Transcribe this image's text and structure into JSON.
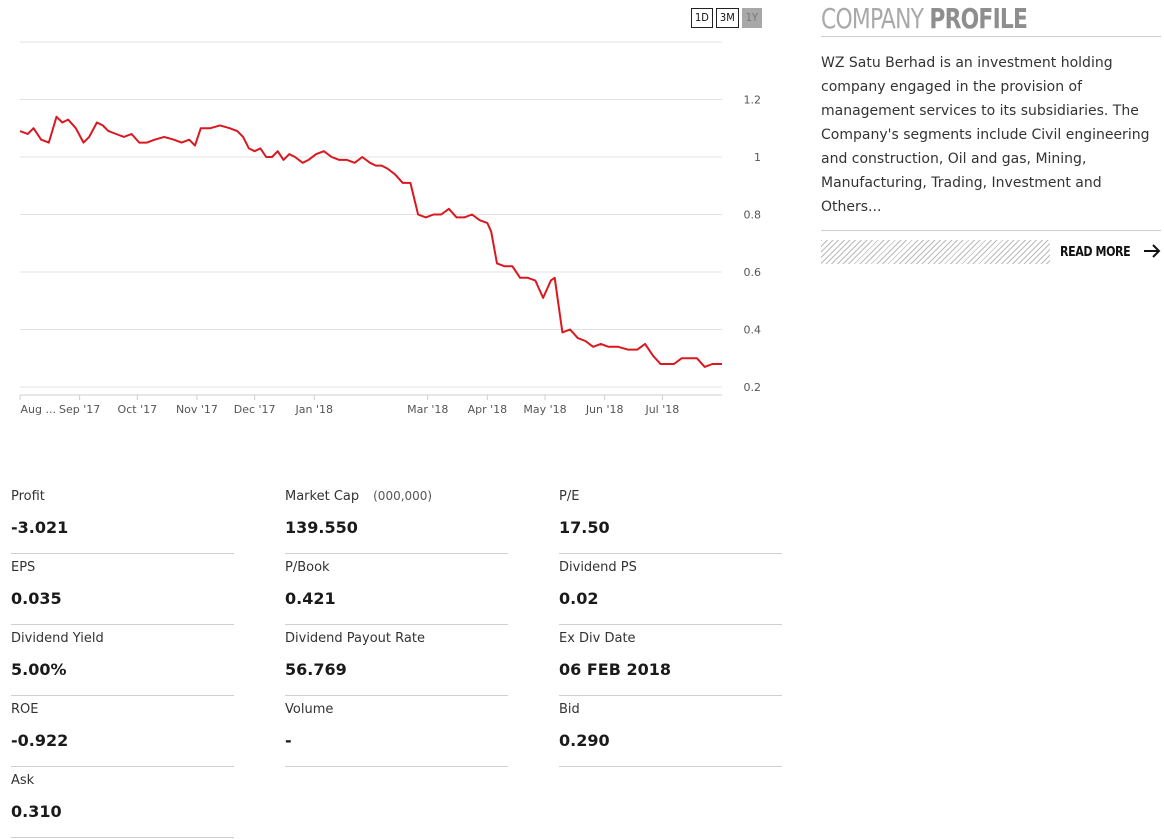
{
  "range_buttons": [
    {
      "label": "1D",
      "active": false
    },
    {
      "label": "3M",
      "active": false
    },
    {
      "label": "1Y",
      "active": true
    }
  ],
  "profile": {
    "title_light": "COMPANY",
    "title_bold": "PROFILE",
    "description": "WZ Satu Berhad is an investment holding company engaged in the provision of management services to its subsidiaries. The Company's segments include Civil engineering and construction, Oil and gas, Mining, Manufacturing, Trading, Investment and Others...",
    "read_more_label": "READ MORE",
    "arrow_icon": "arrow-right-icon"
  },
  "stats": {
    "profit": {
      "label": "Profit",
      "value": "-3.021"
    },
    "market_cap": {
      "label": "Market Cap",
      "unit": "(000,000)",
      "value": "139.550"
    },
    "pe": {
      "label": "P/E",
      "value": "17.50"
    },
    "eps": {
      "label": "EPS",
      "value": "0.035"
    },
    "p_book": {
      "label": "P/Book",
      "value": "0.421"
    },
    "dividend_ps": {
      "label": "Dividend PS",
      "value": "0.02"
    },
    "dividend_yield": {
      "label": "Dividend Yield",
      "value": "5.00%"
    },
    "dividend_payout": {
      "label": "Dividend Payout Rate",
      "value": "56.769"
    },
    "ex_div_date": {
      "label": "Ex Div Date",
      "value": "06 FEB 2018"
    },
    "roe": {
      "label": "ROE",
      "value": "-0.922"
    },
    "volume": {
      "label": "Volume",
      "value": "-"
    },
    "bid": {
      "label": "Bid",
      "value": "0.290"
    },
    "ask": {
      "label": "Ask",
      "value": "0.310"
    }
  },
  "colors": {
    "line": "#d9181f",
    "accent_gray": "#a8a8a8"
  },
  "chart_data": {
    "type": "line",
    "title": "",
    "xlabel": "",
    "ylabel": "",
    "ylim": [
      0.2,
      1.4
    ],
    "yticks": [
      0.2,
      0.4,
      0.6,
      0.8,
      1,
      1.2
    ],
    "ytick_labels": [
      "0.2",
      "0.4",
      "0.6",
      "0.8",
      "1",
      "1.2"
    ],
    "xlim": [
      "2017-08-01",
      "2018-08-01"
    ],
    "xticks": [
      {
        "date": "2017-08-01",
        "label": "Aug ..."
      },
      {
        "date": "2017-09-01",
        "label": "Sep '17"
      },
      {
        "date": "2017-10-01",
        "label": "Oct '17"
      },
      {
        "date": "2017-11-01",
        "label": "Nov '17"
      },
      {
        "date": "2017-12-01",
        "label": "Dec '17"
      },
      {
        "date": "2018-01-01",
        "label": "Jan '18"
      },
      {
        "date": "2018-03-01",
        "label": "Mar '18"
      },
      {
        "date": "2018-04-01",
        "label": "Apr '18"
      },
      {
        "date": "2018-05-01",
        "label": "May '18"
      },
      {
        "date": "2018-06-01",
        "label": "Jun '18"
      },
      {
        "date": "2018-07-01",
        "label": "Jul '18"
      }
    ],
    "grid": true,
    "legend": "none",
    "series": [
      {
        "x": [
          "2017-08-01",
          "2017-08-05",
          "2017-08-08",
          "2017-08-12",
          "2017-08-16",
          "2017-08-20",
          "2017-08-23",
          "2017-08-26",
          "2017-08-30",
          "2017-09-03",
          "2017-09-06",
          "2017-09-10",
          "2017-09-13",
          "2017-09-16",
          "2017-09-20",
          "2017-09-24",
          "2017-09-28",
          "2017-10-02",
          "2017-10-06",
          "2017-10-10",
          "2017-10-15",
          "2017-10-20",
          "2017-10-24",
          "2017-10-28",
          "2017-10-31",
          "2017-11-03",
          "2017-11-08",
          "2017-11-13",
          "2017-11-18",
          "2017-11-22",
          "2017-11-25",
          "2017-11-28",
          "2017-12-01",
          "2017-12-04",
          "2017-12-07",
          "2017-12-10",
          "2017-12-13",
          "2017-12-16",
          "2017-12-19",
          "2017-12-22",
          "2017-12-26",
          "2017-12-29",
          "2018-01-02",
          "2018-01-06",
          "2018-01-10",
          "2018-01-14",
          "2018-01-18",
          "2018-01-22",
          "2018-01-26",
          "2018-01-30",
          "2018-02-02",
          "2018-02-05",
          "2018-02-08",
          "2018-02-12",
          "2018-02-16",
          "2018-02-20",
          "2018-02-24",
          "2018-02-28",
          "2018-03-04",
          "2018-03-08",
          "2018-03-12",
          "2018-03-16",
          "2018-03-20",
          "2018-03-24",
          "2018-03-28",
          "2018-04-01",
          "2018-04-03",
          "2018-04-06",
          "2018-04-10",
          "2018-04-14",
          "2018-04-18",
          "2018-04-22",
          "2018-04-26",
          "2018-04-30",
          "2018-05-04",
          "2018-05-06",
          "2018-05-10",
          "2018-05-14",
          "2018-05-18",
          "2018-05-22",
          "2018-05-26",
          "2018-05-30",
          "2018-06-03",
          "2018-06-08",
          "2018-06-13",
          "2018-06-18",
          "2018-06-22",
          "2018-06-26",
          "2018-06-30",
          "2018-07-03",
          "2018-07-07",
          "2018-07-11",
          "2018-07-15",
          "2018-07-19",
          "2018-07-23",
          "2018-07-27",
          "2018-08-01"
        ],
        "values": [
          1.09,
          1.08,
          1.1,
          1.06,
          1.05,
          1.14,
          1.12,
          1.13,
          1.1,
          1.05,
          1.07,
          1.12,
          1.11,
          1.09,
          1.08,
          1.07,
          1.08,
          1.05,
          1.05,
          1.06,
          1.07,
          1.06,
          1.05,
          1.06,
          1.04,
          1.1,
          1.1,
          1.11,
          1.1,
          1.09,
          1.07,
          1.03,
          1.02,
          1.03,
          1.0,
          1.0,
          1.02,
          0.99,
          1.01,
          1.0,
          0.98,
          0.99,
          1.01,
          1.02,
          1.0,
          0.99,
          0.99,
          0.98,
          1.0,
          0.98,
          0.97,
          0.97,
          0.96,
          0.94,
          0.91,
          0.91,
          0.8,
          0.79,
          0.8,
          0.8,
          0.82,
          0.79,
          0.79,
          0.8,
          0.78,
          0.77,
          0.74,
          0.63,
          0.62,
          0.62,
          0.58,
          0.58,
          0.57,
          0.51,
          0.57,
          0.58,
          0.39,
          0.4,
          0.37,
          0.36,
          0.34,
          0.35,
          0.34,
          0.34,
          0.33,
          0.33,
          0.35,
          0.31,
          0.28,
          0.28,
          0.28,
          0.3,
          0.3,
          0.3,
          0.27,
          0.28,
          0.28
        ]
      }
    ]
  }
}
